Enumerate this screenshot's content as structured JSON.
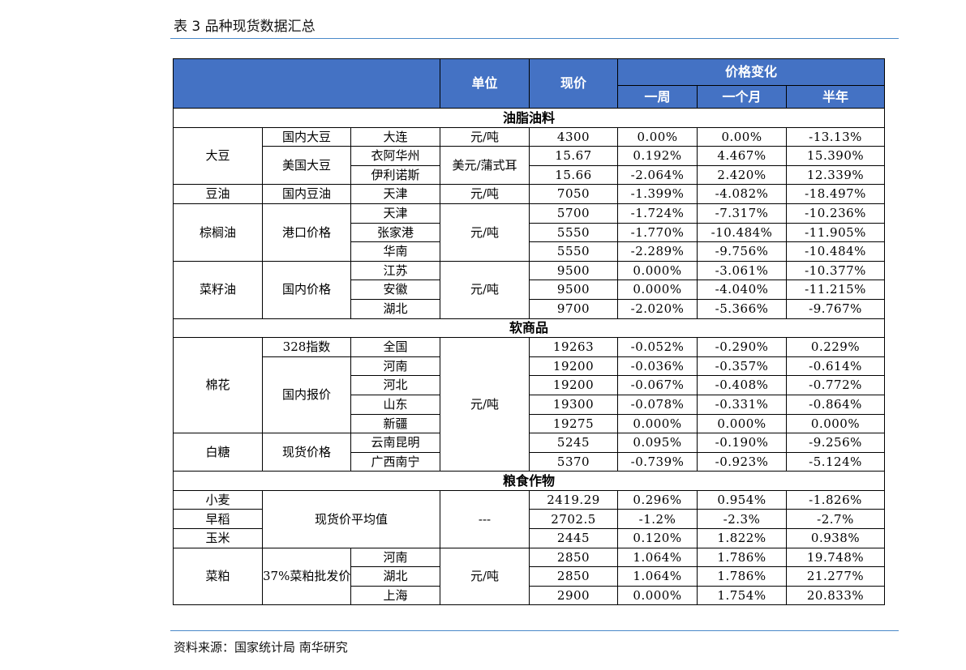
{
  "title": "表 3  品种现货数据汇总",
  "source": "资料来源：国家统计局  南华研究",
  "header": {
    "unit": "单位",
    "price": "现价",
    "change": "价格变化",
    "week": "一周",
    "month": "一个月",
    "half_year": "半年"
  },
  "sections": {
    "oils": {
      "label": "油脂油料",
      "soybean": "大豆",
      "domestic_soy": "国内大豆",
      "us_soy": "美国大豆",
      "soy_oil": "豆油",
      "domestic_soy_oil": "国内豆油",
      "palm_oil": "棕榈油",
      "port_price": "港口价格",
      "rapeseed_oil": "菜籽油",
      "domestic_price": "国内价格",
      "unit_yuan_ton": "元/吨",
      "unit_usd_bushel": "美元/蒲式耳",
      "rows": [
        {
          "place": "大连",
          "price": "4300",
          "week": "0.00%",
          "month": "0.00%",
          "half": "-13.13%"
        },
        {
          "place": "衣阿华州",
          "price": "15.67",
          "week": "0.192%",
          "month": "4.467%",
          "half": "15.390%"
        },
        {
          "place": "伊利诺斯",
          "price": "15.66",
          "week": "-2.064%",
          "month": "2.420%",
          "half": "12.339%"
        },
        {
          "place": "天津",
          "price": "7050",
          "week": "-1.399%",
          "month": "-4.082%",
          "half": "-18.497%"
        },
        {
          "place": "天津",
          "price": "5700",
          "week": "-1.724%",
          "month": "-7.317%",
          "half": "-10.236%"
        },
        {
          "place": "张家港",
          "price": "5550",
          "week": "-1.770%",
          "month": "-10.484%",
          "half": "-11.905%"
        },
        {
          "place": "华南",
          "price": "5550",
          "week": "-2.289%",
          "month": "-9.756%",
          "half": "-10.484%"
        },
        {
          "place": "江苏",
          "price": "9500",
          "week": "0.000%",
          "month": "-3.061%",
          "half": "-10.377%"
        },
        {
          "place": "安徽",
          "price": "9500",
          "week": "0.000%",
          "month": "-4.040%",
          "half": "-11.215%"
        },
        {
          "place": "湖北",
          "price": "9700",
          "week": "-2.020%",
          "month": "-5.366%",
          "half": "-9.767%"
        }
      ]
    },
    "softs": {
      "label": "软商品",
      "cotton": "棉花",
      "index_328": "328指数",
      "domestic_quote": "国内报价",
      "sugar": "白糖",
      "spot_price": "现货价格",
      "unit_yuan_ton": "元/吨",
      "rows": [
        {
          "place": "全国",
          "price": "19263",
          "week": "-0.052%",
          "month": "-0.290%",
          "half": "0.229%"
        },
        {
          "place": "河南",
          "price": "19200",
          "week": "-0.036%",
          "month": "-0.357%",
          "half": "-0.614%"
        },
        {
          "place": "河北",
          "price": "19200",
          "week": "-0.067%",
          "month": "-0.408%",
          "half": "-0.772%"
        },
        {
          "place": "山东",
          "price": "19300",
          "week": "-0.078%",
          "month": "-0.331%",
          "half": "-0.864%"
        },
        {
          "place": "新疆",
          "price": "19275",
          "week": "0.000%",
          "month": "0.000%",
          "half": "0.000%"
        },
        {
          "place": "云南昆明",
          "price": "5245",
          "week": "0.095%",
          "month": "-0.190%",
          "half": "-9.256%"
        },
        {
          "place": "广西南宁",
          "price": "5370",
          "week": "-0.739%",
          "month": "-0.923%",
          "half": "-5.124%"
        }
      ]
    },
    "grains": {
      "label": "粮食作物",
      "spot_avg": "现货价平均值",
      "dash": "---",
      "rapeseed_meal": "菜粕",
      "meal_quote": "37%菜粕批发价",
      "unit_yuan_ton": "元/吨",
      "rows": [
        {
          "name": "小麦",
          "price": "2419.29",
          "week": "0.296%",
          "month": "0.954%",
          "half": "-1.826%"
        },
        {
          "name": "早稻",
          "price": "2702.5",
          "week": "-1.2%",
          "month": "-2.3%",
          "half": "-2.7%"
        },
        {
          "name": "玉米",
          "price": "2445",
          "week": "0.120%",
          "month": "1.822%",
          "half": "0.938%"
        },
        {
          "place": "河南",
          "price": "2850",
          "week": "1.064%",
          "month": "1.786%",
          "half": "19.748%"
        },
        {
          "place": "湖北",
          "price": "2850",
          "week": "1.064%",
          "month": "1.786%",
          "half": "21.277%"
        },
        {
          "place": "上海",
          "price": "2900",
          "week": "0.000%",
          "month": "1.754%",
          "half": "20.833%"
        }
      ]
    }
  },
  "colors": {
    "header_bg": "#4472c4",
    "rule": "#4a89c9"
  }
}
